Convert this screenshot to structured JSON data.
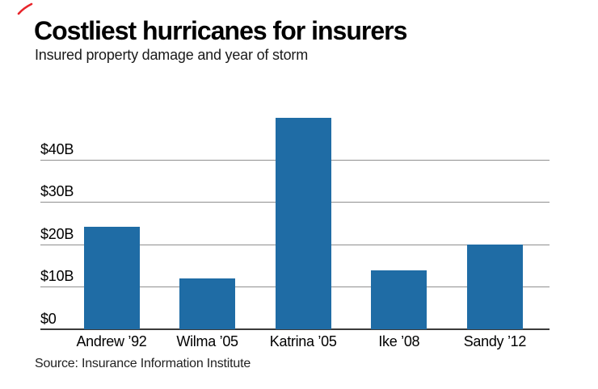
{
  "corner_mark": {
    "color": "#e8252b",
    "name": "red-pen-tick"
  },
  "chart_data": {
    "type": "bar",
    "title": "Costliest hurricanes for insurers",
    "subtitle": "Insured property damage and year of storm",
    "source": "Source: Insurance Information Institute",
    "categories": [
      "Andrew ’92",
      "Wilma ’05",
      "Katrina ’05",
      "Ike ’08",
      "Sandy ’12"
    ],
    "values": [
      24.1,
      12.0,
      49.8,
      13.9,
      19.9
    ],
    "y_ticks": [
      {
        "value": 0,
        "label": "$0"
      },
      {
        "value": 10,
        "label": "$10B"
      },
      {
        "value": 20,
        "label": "$20B"
      },
      {
        "value": 30,
        "label": "$30B"
      },
      {
        "value": 40,
        "label": "$40B"
      }
    ],
    "ylim": [
      0,
      51
    ],
    "grid": true,
    "legend": "none",
    "bar_color": "#1f6ca5"
  }
}
